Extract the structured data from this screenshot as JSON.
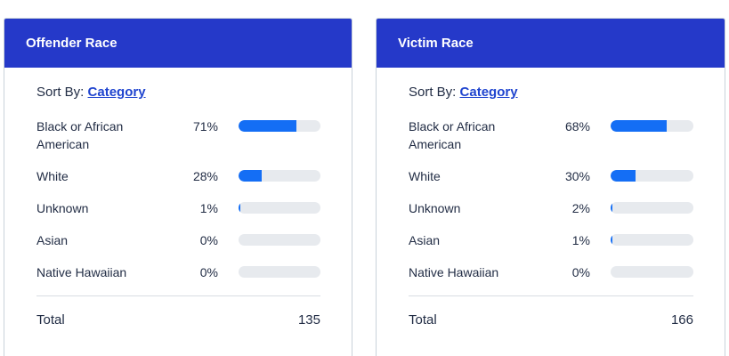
{
  "colors": {
    "header_bg": "#2539c9",
    "bar_fill": "#146ef5",
    "bar_track": "#e7eaee",
    "link_blue": "#1f44cf",
    "text": "#222d45",
    "card_border": "#c9d2da",
    "divider": "#d8dde2"
  },
  "panels": [
    {
      "title": "Offender Race",
      "sort_label": "Sort By:",
      "sort_link": "Category",
      "rows": [
        {
          "label": "Black or African American",
          "pct": "71%",
          "value": 71
        },
        {
          "label": "White",
          "pct": "28%",
          "value": 28
        },
        {
          "label": "Unknown",
          "pct": "1%",
          "value": 1
        },
        {
          "label": "Asian",
          "pct": "0%",
          "value": 0
        },
        {
          "label": "Native Hawaiian",
          "pct": "0%",
          "value": 0
        }
      ],
      "total_label": "Total",
      "total_value": "135"
    },
    {
      "title": "Victim Race",
      "sort_label": "Sort By:",
      "sort_link": "Category",
      "rows": [
        {
          "label": "Black or African American",
          "pct": "68%",
          "value": 68
        },
        {
          "label": "White",
          "pct": "30%",
          "value": 30
        },
        {
          "label": "Unknown",
          "pct": "2%",
          "value": 2
        },
        {
          "label": "Asian",
          "pct": "1%",
          "value": 1
        },
        {
          "label": "Native Hawaiian",
          "pct": "0%",
          "value": 0
        }
      ],
      "total_label": "Total",
      "total_value": "166"
    }
  ],
  "chart_data": [
    {
      "type": "bar",
      "orientation": "horizontal",
      "title": "Offender Race",
      "categories": [
        "Black or African American",
        "White",
        "Unknown",
        "Asian",
        "Native Hawaiian"
      ],
      "values": [
        71,
        28,
        1,
        0,
        0
      ],
      "unit": "%",
      "xlim": [
        0,
        100
      ],
      "total": 135,
      "legend": "none",
      "grid": false
    },
    {
      "type": "bar",
      "orientation": "horizontal",
      "title": "Victim Race",
      "categories": [
        "Black or African American",
        "White",
        "Unknown",
        "Asian",
        "Native Hawaiian"
      ],
      "values": [
        68,
        30,
        2,
        1,
        0
      ],
      "unit": "%",
      "xlim": [
        0,
        100
      ],
      "total": 166,
      "legend": "none",
      "grid": false
    }
  ]
}
